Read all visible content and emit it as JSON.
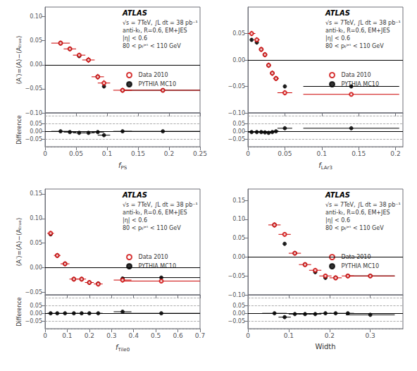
{
  "chart_data": [
    {
      "type": "scatter",
      "ylabel": "⟨A′⟩=⟨A⟩−⟨Aₜᵣᵤₑ⟩",
      "annotations": [
        "ATLAS",
        "√s = 7TeV, ∫L dt = 38 pb⁻¹\nanti-kₜ, R=0.6, EM+JES\n|η| < 0.6\n80 < pₜʲᵉᵗ < 110 GeV"
      ],
      "xlim": [
        0,
        0.25
      ],
      "xticks": [
        0,
        0.05,
        0.1,
        0.15,
        0.2,
        0.25
      ],
      "ylim": [
        -0.1,
        0.12
      ],
      "yticks": [
        {
          "value": -0.1,
          "label": "−0.10"
        },
        {
          "value": -0.05,
          "label": "−0.05"
        },
        {
          "value": 0,
          "label": "0.00"
        },
        0.05,
        {
          "value": 0.1,
          "label": "0.10"
        }
      ],
      "grid": false,
      "tick_labels": "y",
      "legend": "lower right",
      "hlines": [
        {
          "value": 0,
          "line_style": "solid"
        }
      ],
      "series": [
        {
          "name": "Data 2010",
          "color": "#cc0000",
          "marker": "open circle",
          "x": [
            0.025,
            0.04,
            0.055,
            0.07,
            0.085,
            0.095,
            0.125,
            0.19
          ],
          "values": [
            0.045,
            0.033,
            0.02,
            0.01,
            -0.025,
            -0.038,
            -0.053,
            -0.053
          ],
          "xerr": [
            0.015,
            0.01,
            0.01,
            0.01,
            0.01,
            0.01,
            0.015,
            0.065
          ],
          "yerr": [
            0.005,
            0.005,
            0.005,
            0.006,
            0.006,
            0.006,
            0.005,
            0.003
          ]
        },
        {
          "name": "PYTHIA MC10",
          "color": "#000000",
          "marker": "circle",
          "x": [
            0.025,
            0.04,
            0.055,
            0.07,
            0.085,
            0.095,
            0.125,
            0.19
          ],
          "values": [
            0.045,
            0.033,
            0.018,
            0.01,
            -0.025,
            -0.045,
            -0.053,
            -0.053
          ],
          "xerr": [
            0.0,
            0.0,
            0.0,
            0.0,
            0.0,
            0.0,
            0.0,
            0.065
          ],
          "yerr": [
            0.003,
            0.003,
            0.003,
            0.004,
            0.004,
            0.003,
            0.003,
            0.002
          ]
        }
      ]
    },
    {
      "type": "scatter",
      "xlabel": "fPS",
      "ylabel": "Difference",
      "xlim": [
        0,
        0.25
      ],
      "xticks": [
        0,
        0.05,
        0.1,
        0.15,
        0.2,
        0.25
      ],
      "ylim": [
        -0.1,
        0.12
      ],
      "yticks": [
        {
          "value": -0.05,
          "label": "−0.05"
        },
        {
          "value": 0,
          "label": "0.00"
        },
        0.05
      ],
      "grid": false,
      "hlines": [
        {
          "value": -0.1,
          "line_style": "dashed"
        },
        {
          "value": -0.05,
          "line_style": "dashed"
        },
        {
          "value": 0.05,
          "line_style": "dashed"
        },
        {
          "value": 0.1,
          "line_style": "dashed"
        },
        {
          "value": 0,
          "line_style": "solid"
        }
      ],
      "series": [
        {
          "color": "#000000",
          "marker": "circle",
          "x": [
            0.025,
            0.04,
            0.055,
            0.07,
            0.085,
            0.095,
            0.125,
            0.19
          ],
          "values": [
            0.0,
            -0.005,
            -0.01,
            -0.01,
            -0.005,
            -0.025,
            0.0,
            0.0
          ],
          "xerr": [
            0.015,
            0.01,
            0.01,
            0.01,
            0.01,
            0.01,
            0.015,
            0.065
          ],
          "yerr": [
            0.006,
            0.006,
            0.006,
            0.007,
            0.007,
            0.007,
            0.006,
            0.004
          ]
        }
      ]
    },
    {
      "type": "scatter",
      "annotations": [
        "ATLAS",
        "√s = 7TeV, ∫L dt = 38 pb⁻¹\nanti-kₜ, R=0.6, EM+JES\n|η| < 0.6\n80 < pₜʲᵉᵗ < 110 GeV"
      ],
      "xlim": [
        0,
        0.21
      ],
      "xticks": [
        0,
        0.05,
        0.1,
        0.15,
        0.2
      ],
      "ylim": [
        -0.1,
        0.1
      ],
      "yticks": [
        {
          "value": -0.1,
          "label": "−0.10"
        },
        {
          "value": -0.05,
          "label": "−0.05"
        },
        {
          "value": 0,
          "label": "0.00"
        },
        0.05
      ],
      "grid": false,
      "tick_labels": "y",
      "legend": "lower right",
      "hlines": [
        {
          "value": 0,
          "line_style": "solid"
        }
      ],
      "series": [
        {
          "name": "Data 2010",
          "color": "#cc0000",
          "marker": "open circle",
          "x": [
            0.005,
            0.012,
            0.018,
            0.023,
            0.028,
            0.033,
            0.038,
            0.05,
            0.14
          ],
          "values": [
            0.05,
            0.038,
            0.02,
            0.01,
            -0.01,
            -0.025,
            -0.035,
            -0.062,
            -0.065
          ],
          "xerr": [
            0.005,
            0.004,
            0.003,
            0.003,
            0.003,
            0.003,
            0.004,
            0.01,
            0.065
          ],
          "yerr": [
            0.005,
            0.005,
            0.005,
            0.005,
            0.005,
            0.005,
            0.005,
            0.005,
            0.003
          ]
        },
        {
          "name": "PYTHIA MC10",
          "color": "#000000",
          "marker": "circle",
          "x": [
            0.005,
            0.012,
            0.018,
            0.023,
            0.028,
            0.033,
            0.038,
            0.05,
            0.14
          ],
          "values": [
            0.038,
            0.033,
            0.02,
            0.01,
            -0.01,
            -0.025,
            -0.035,
            -0.05,
            -0.05
          ],
          "xerr": [
            0.0,
            0.0,
            0.0,
            0.0,
            0.0,
            0.0,
            0.0,
            0.0,
            0.065
          ],
          "yerr": [
            0.003,
            0.003,
            0.003,
            0.003,
            0.003,
            0.003,
            0.003,
            0.003,
            0.002
          ]
        }
      ]
    },
    {
      "type": "scatter",
      "xlabel": "fLAr3",
      "xlim": [
        0,
        0.21
      ],
      "xticks": [
        0,
        0.05,
        0.1,
        0.15,
        0.2
      ],
      "ylim": [
        -0.1,
        0.12
      ],
      "yticks": [
        {
          "value": -0.05,
          "label": "−0.05"
        },
        {
          "value": 0,
          "label": "0.00"
        },
        0.05
      ],
      "grid": false,
      "hlines": [
        {
          "value": -0.1,
          "line_style": "dashed"
        },
        {
          "value": -0.05,
          "line_style": "dashed"
        },
        {
          "value": 0.05,
          "line_style": "dashed"
        },
        {
          "value": 0.1,
          "line_style": "dashed"
        },
        {
          "value": 0,
          "line_style": "solid"
        }
      ],
      "series": [
        {
          "color": "#000000",
          "marker": "circle",
          "x": [
            0.005,
            0.012,
            0.018,
            0.023,
            0.028,
            0.033,
            0.038,
            0.05,
            0.14
          ],
          "values": [
            -0.005,
            -0.005,
            -0.005,
            -0.007,
            -0.01,
            -0.005,
            0.0,
            0.02,
            0.02
          ],
          "xerr": [
            0.005,
            0.004,
            0.003,
            0.003,
            0.003,
            0.003,
            0.004,
            0.01,
            0.065
          ],
          "yerr": [
            0.006,
            0.006,
            0.006,
            0.006,
            0.006,
            0.006,
            0.006,
            0.006,
            0.004
          ]
        }
      ]
    },
    {
      "type": "scatter",
      "ylabel": "⟨A′⟩=⟨A⟩−⟨Aₜᵣᵤₑ⟩",
      "annotations": [
        "ATLAS",
        "√s = 7TeV, ∫L dt = 38 pb⁻¹\nanti-kₜ, R=0.6, EM+JES\n|η| < 0.6\n80 < pₜʲᵉᵗ < 110 GeV"
      ],
      "xlim": [
        0,
        0.7
      ],
      "xticks": [
        0,
        0.1,
        0.2,
        0.3,
        0.4,
        0.5,
        0.6,
        0.7
      ],
      "ylim": [
        -0.055,
        0.16
      ],
      "yticks": [
        {
          "value": -0.05,
          "label": "−0.05"
        },
        {
          "value": 0,
          "label": "0.00"
        },
        0.05,
        {
          "value": 0.1,
          "label": "0.10"
        },
        0.15
      ],
      "grid": false,
      "tick_labels": "y",
      "legend": "lower right",
      "hlines": [
        {
          "value": 0,
          "line_style": "solid"
        }
      ],
      "series": [
        {
          "name": "Data 2010",
          "color": "#cc0000",
          "marker": "open circle",
          "x": [
            0.025,
            0.055,
            0.09,
            0.13,
            0.165,
            0.2,
            0.24,
            0.35,
            0.525
          ],
          "values": [
            0.07,
            0.025,
            0.008,
            -0.023,
            -0.023,
            -0.03,
            -0.033,
            -0.025,
            -0.027
          ],
          "xerr": [
            0.015,
            0.015,
            0.02,
            0.02,
            0.02,
            0.02,
            0.02,
            0.04,
            0.175
          ],
          "yerr": [
            0.005,
            0.005,
            0.005,
            0.005,
            0.005,
            0.005,
            0.005,
            0.005,
            0.003
          ]
        },
        {
          "name": "PYTHIA MC10",
          "color": "#000000",
          "marker": "circle",
          "x": [
            0.025,
            0.055,
            0.09,
            0.13,
            0.165,
            0.2,
            0.24,
            0.35,
            0.525
          ],
          "values": [
            0.068,
            0.025,
            0.008,
            -0.023,
            -0.023,
            -0.03,
            -0.032,
            -0.022,
            -0.02
          ],
          "xerr": [
            0.0,
            0.0,
            0.0,
            0.0,
            0.0,
            0.0,
            0.0,
            0.0,
            0.175
          ],
          "yerr": [
            0.003,
            0.003,
            0.003,
            0.003,
            0.003,
            0.003,
            0.003,
            0.003,
            0.002
          ]
        }
      ]
    },
    {
      "type": "scatter",
      "xlabel": "fTile0",
      "ylabel": "Difference",
      "xlim": [
        0,
        0.7
      ],
      "xticks": [
        0,
        0.1,
        0.2,
        0.3,
        0.4,
        0.5,
        0.6,
        0.7
      ],
      "ylim": [
        -0.1,
        0.12
      ],
      "yticks": [
        {
          "value": -0.05,
          "label": "−0.05"
        },
        {
          "value": 0,
          "label": "0.00"
        },
        0.05
      ],
      "grid": false,
      "hlines": [
        {
          "value": -0.1,
          "line_style": "dashed"
        },
        {
          "value": -0.05,
          "line_style": "dashed"
        },
        {
          "value": 0.05,
          "line_style": "dashed"
        },
        {
          "value": 0.1,
          "line_style": "dashed"
        },
        {
          "value": 0,
          "line_style": "solid"
        }
      ],
      "series": [
        {
          "color": "#000000",
          "marker": "circle",
          "x": [
            0.025,
            0.055,
            0.09,
            0.13,
            0.165,
            0.2,
            0.24,
            0.35,
            0.525
          ],
          "values": [
            0.0,
            0.0,
            0.0,
            0.0,
            0.0,
            0.0,
            0.0,
            0.01,
            0.0
          ],
          "xerr": [
            0.015,
            0.015,
            0.02,
            0.02,
            0.02,
            0.02,
            0.02,
            0.04,
            0.175
          ],
          "yerr": [
            0.006,
            0.006,
            0.006,
            0.006,
            0.006,
            0.006,
            0.006,
            0.006,
            0.004
          ]
        }
      ]
    },
    {
      "type": "scatter",
      "annotations": [
        "ATLAS",
        "√s = 7TeV, ∫L dt = 38 pb⁻¹\nanti-kₜ, R=0.6, EM+JES\n|η| < 0.6\n80 < pₜʲᵉᵗ < 110 GeV"
      ],
      "xlim": [
        0,
        0.38
      ],
      "xticks": [
        0,
        0.1,
        0.2,
        0.3
      ],
      "ylim": [
        -0.1,
        0.18
      ],
      "yticks": [
        {
          "value": -0.1,
          "label": "−0.10"
        },
        {
          "value": -0.05,
          "label": "−0.05"
        },
        {
          "value": 0,
          "label": "0.00"
        },
        0.05,
        {
          "value": 0.1,
          "label": "0.10"
        },
        0.15
      ],
      "grid": false,
      "tick_labels": "y",
      "legend": "lower right",
      "hlines": [
        {
          "value": 0,
          "line_style": "solid"
        }
      ],
      "series": [
        {
          "name": "Data 2010",
          "color": "#cc0000",
          "marker": "open circle",
          "x": [
            0.065,
            0.09,
            0.115,
            0.14,
            0.165,
            0.19,
            0.215,
            0.245,
            0.3
          ],
          "values": [
            0.085,
            0.06,
            0.01,
            -0.02,
            -0.035,
            -0.05,
            -0.055,
            -0.05,
            -0.05
          ],
          "xerr": [
            0.015,
            0.015,
            0.015,
            0.015,
            0.015,
            0.015,
            0.015,
            0.015,
            0.06
          ],
          "yerr": [
            0.007,
            0.006,
            0.006,
            0.006,
            0.006,
            0.006,
            0.006,
            0.006,
            0.003
          ]
        },
        {
          "name": "PYTHIA MC10",
          "color": "#000000",
          "marker": "circle",
          "x": [
            0.065,
            0.09,
            0.115,
            0.14,
            0.165,
            0.19,
            0.215,
            0.245,
            0.3
          ],
          "values": [
            0.085,
            0.035,
            0.01,
            -0.02,
            -0.04,
            -0.055,
            -0.055,
            -0.05,
            -0.05
          ],
          "xerr": [
            0.0,
            0.0,
            0.0,
            0.0,
            0.0,
            0.0,
            0.0,
            0.0,
            0.06
          ],
          "yerr": [
            0.004,
            0.004,
            0.004,
            0.004,
            0.004,
            0.004,
            0.004,
            0.004,
            0.002
          ]
        }
      ]
    },
    {
      "type": "scatter",
      "xlabel": "Width",
      "xlim": [
        0,
        0.38
      ],
      "xticks": [
        0,
        0.1,
        0.2,
        0.3
      ],
      "ylim": [
        -0.1,
        0.12
      ],
      "yticks": [
        {
          "value": -0.05,
          "label": "−0.05"
        },
        {
          "value": 0,
          "label": "0.00"
        },
        0.05
      ],
      "grid": false,
      "hlines": [
        {
          "value": -0.1,
          "line_style": "dashed"
        },
        {
          "value": -0.05,
          "line_style": "dashed"
        },
        {
          "value": 0.05,
          "line_style": "dashed"
        },
        {
          "value": 0.1,
          "line_style": "dashed"
        },
        {
          "value": 0,
          "line_style": "solid"
        }
      ],
      "series": [
        {
          "color": "#000000",
          "marker": "circle",
          "x": [
            0.065,
            0.09,
            0.115,
            0.14,
            0.165,
            0.19,
            0.215,
            0.245,
            0.3
          ],
          "values": [
            0.0,
            -0.025,
            -0.005,
            -0.005,
            -0.005,
            0.0,
            0.0,
            0.0,
            -0.01
          ],
          "xerr": [
            0.03,
            0.015,
            0.015,
            0.015,
            0.015,
            0.015,
            0.015,
            0.015,
            0.06
          ],
          "yerr": [
            0.008,
            0.007,
            0.007,
            0.007,
            0.007,
            0.007,
            0.007,
            0.007,
            0.005
          ]
        }
      ]
    }
  ]
}
